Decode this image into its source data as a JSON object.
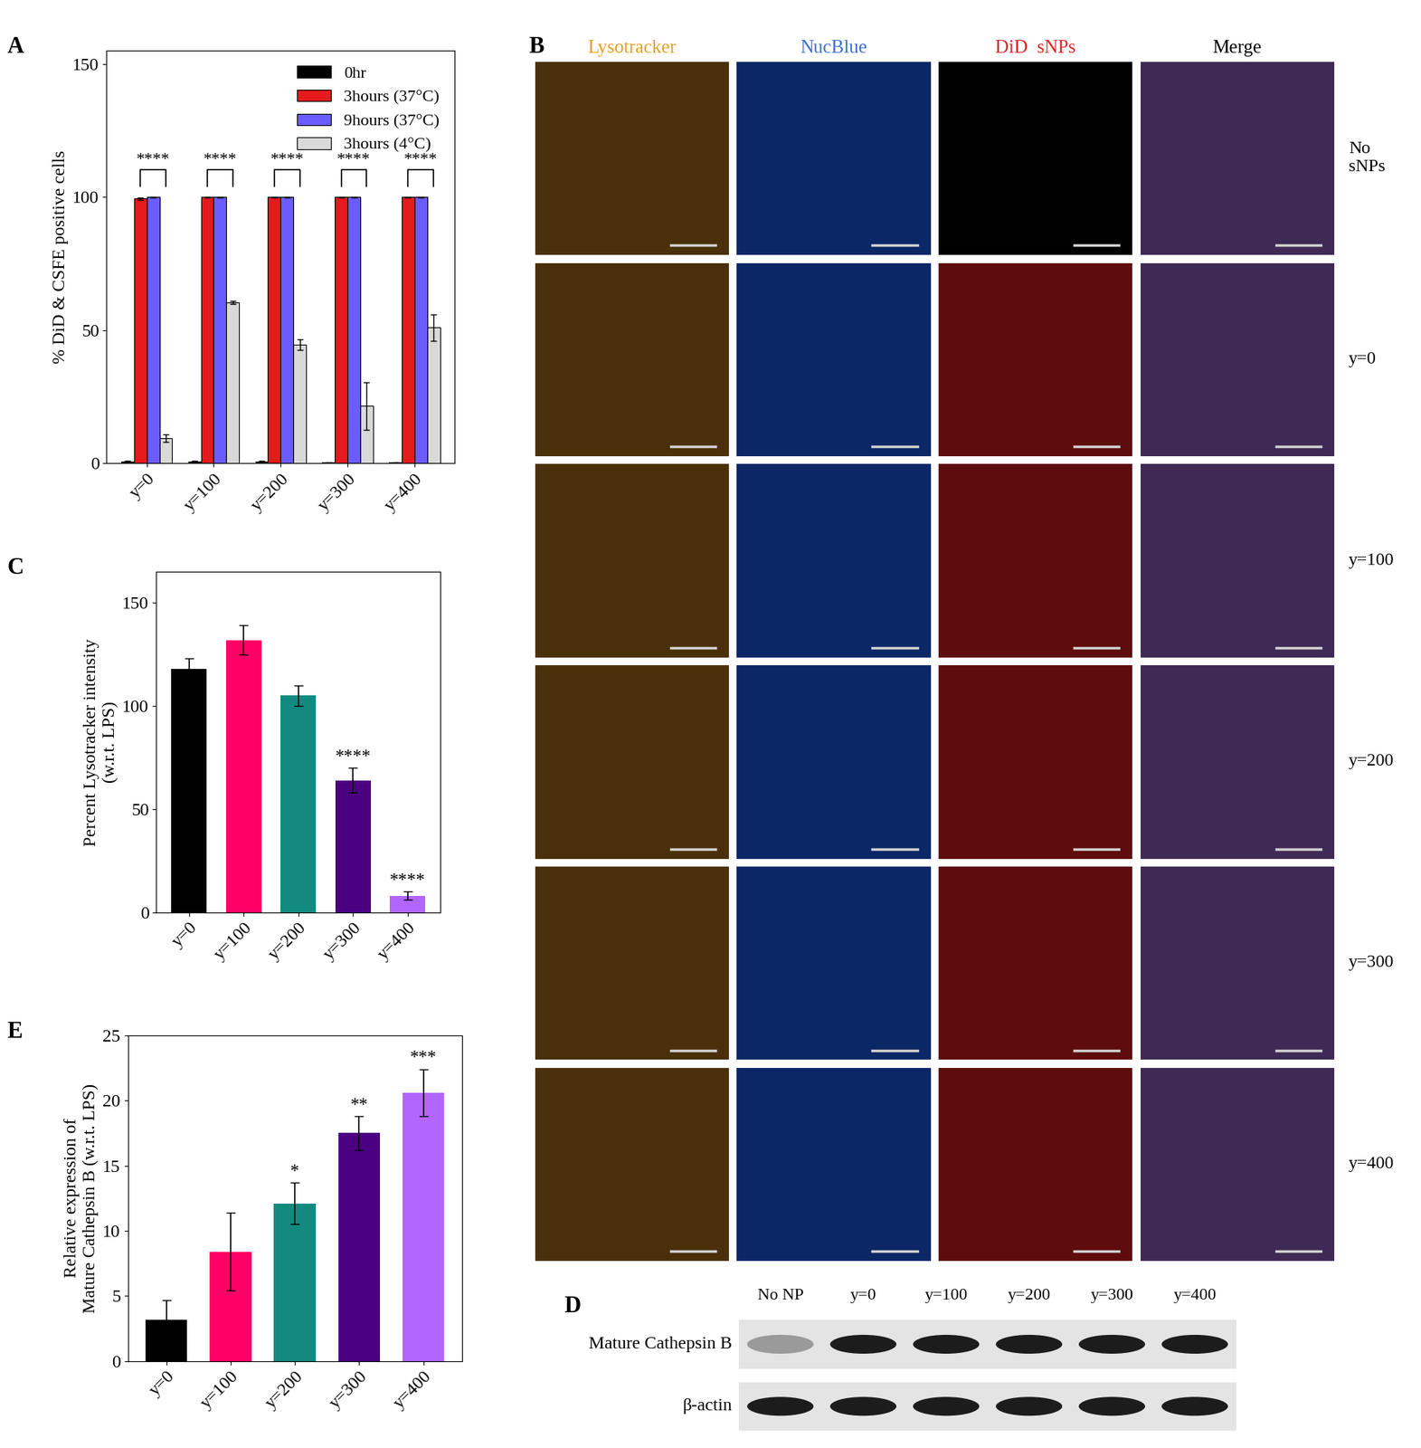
{
  "chart_data": [
    {
      "panel": "A",
      "type": "bar",
      "categories": [
        "y=0",
        "y=100",
        "y=200",
        "y=300",
        "y=400"
      ],
      "ylabel": "% DiD & CSFE positive cells",
      "ylim": [
        0,
        155
      ],
      "yticks": [
        0,
        50,
        100,
        150
      ],
      "legend": "upper right",
      "series": [
        {
          "name": "0hr",
          "color": "#000000",
          "values": [
            0.6,
            0.6,
            0.6,
            0.3,
            0.3
          ],
          "errors": [
            0.3,
            0.3,
            0.3,
            0.2,
            0.2
          ]
        },
        {
          "name": "3hours (37°C)",
          "color": "#e41a1c",
          "values": [
            99.5,
            100,
            100,
            100,
            100
          ],
          "errors": [
            0.4,
            0.2,
            0.2,
            0.2,
            0.2
          ]
        },
        {
          "name": "9hours (37°C)",
          "color": "#6a5cff",
          "values": [
            100,
            100,
            100,
            100,
            100
          ],
          "errors": [
            0.2,
            0.2,
            0.2,
            0.2,
            0.2
          ]
        },
        {
          "name": "3hours (4°C)",
          "color": "#d9d9d9",
          "values": [
            9.5,
            60.5,
            44.5,
            21.5,
            51
          ],
          "errors": [
            1.5,
            0.5,
            2.0,
            9.0,
            5.0
          ]
        }
      ],
      "annotations": [
        "****",
        "****",
        "****",
        "****",
        "****"
      ]
    },
    {
      "panel": "C",
      "type": "bar",
      "categories": [
        "y=0",
        "y=100",
        "y=200",
        "y=300",
        "y=400"
      ],
      "ylabel": "Percent Lysotracker intensity\n(w.r.t. LPS)",
      "ylim": [
        0,
        165
      ],
      "yticks": [
        0,
        50,
        100,
        150
      ],
      "values": [
        118,
        132,
        105,
        64,
        8
      ],
      "errors": [
        5,
        7,
        5,
        6,
        2
      ],
      "colors": [
        "#000000",
        "#ff0066",
        "#138a80",
        "#4b0082",
        "#b366ff"
      ],
      "annotations": [
        null,
        null,
        null,
        "****",
        "****"
      ]
    },
    {
      "panel": "E",
      "type": "bar",
      "categories": [
        "y=0",
        "y=100",
        "y=200",
        "y=300",
        "y=400"
      ],
      "ylabel": "Relative expression of\nMature Cathepsin B (w.r.t. LPS)",
      "ylim": [
        0,
        25
      ],
      "yticks": [
        0,
        5,
        10,
        15,
        20,
        25
      ],
      "values": [
        3.2,
        8.4,
        12.1,
        17.5,
        20.6
      ],
      "errors": [
        1.5,
        3.0,
        1.6,
        1.3,
        1.8
      ],
      "colors": [
        "#000000",
        "#ff0066",
        "#138a80",
        "#4b0082",
        "#b366ff"
      ],
      "annotations": [
        null,
        null,
        "*",
        "**",
        "***"
      ]
    }
  ],
  "microscopy": {
    "panel": "B",
    "columns": [
      {
        "label": "Lysotracker",
        "color": "#e6a020"
      },
      {
        "label": "NucBlue",
        "color": "#3a6fd8"
      },
      {
        "label": "DiD  sNPs",
        "color": "#e02020"
      },
      {
        "label": "Merge",
        "color": "#000000"
      }
    ],
    "rows": [
      "No\nsNPs",
      "y=0",
      "y=100",
      "y=200",
      "y=300",
      "y=400"
    ]
  },
  "western_blot": {
    "panel": "D",
    "lanes": [
      "No NP",
      "y=0",
      "y=100",
      "y=200",
      "y=300",
      "y=400"
    ],
    "bands": [
      "Mature Cathepsin B",
      "β-actin"
    ]
  }
}
